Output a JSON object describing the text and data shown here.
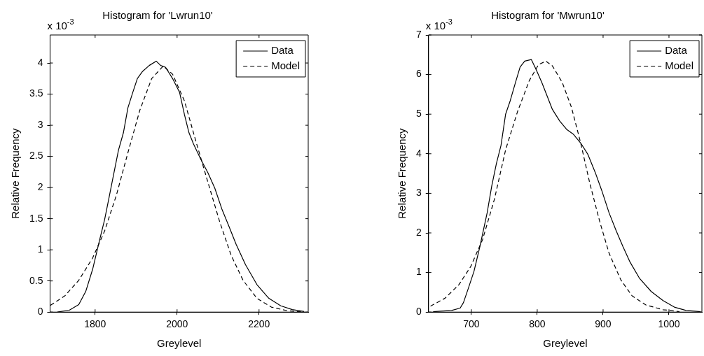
{
  "chart_data": [
    {
      "type": "line",
      "title": "Histogram for 'Lwrun10'",
      "xlabel": "Greylevel",
      "ylabel": "Relative Frequency",
      "annotations": [
        "x 10$^{-3}$"
      ],
      "xlim": [
        1690,
        2320
      ],
      "xticks": [
        1800,
        2000,
        2200
      ],
      "ylim": [
        0,
        4.45
      ],
      "yticks": [
        0,
        0.5,
        1,
        1.5,
        2,
        2.5,
        3,
        3.5,
        4
      ],
      "grid": false,
      "legend": "top right",
      "marker": "none",
      "series": [
        {
          "name": "Data",
          "color": "#000000",
          "line_style": "solid",
          "x": [
            1708,
            1737,
            1760,
            1777,
            1794,
            1811,
            1823,
            1834,
            1846,
            1857,
            1869,
            1880,
            1892,
            1903,
            1915,
            1932,
            1949,
            1960,
            1972,
            1989,
            2006,
            2018,
            2029,
            2040,
            2058,
            2075,
            2092,
            2109,
            2127,
            2144,
            2167,
            2195,
            2224,
            2253,
            2281,
            2310
          ],
          "values": [
            0,
            0.03,
            0.12,
            0.33,
            0.69,
            1.16,
            1.48,
            1.84,
            2.24,
            2.6,
            2.88,
            3.28,
            3.53,
            3.75,
            3.86,
            3.96,
            4.03,
            3.96,
            3.93,
            3.75,
            3.53,
            3.17,
            2.88,
            2.7,
            2.45,
            2.24,
            1.99,
            1.66,
            1.37,
            1.09,
            0.76,
            0.44,
            0.22,
            0.1,
            0.04,
            0.01
          ]
        },
        {
          "name": "Model",
          "color": "#000000",
          "line_style": "dashed",
          "x": [
            1691,
            1726,
            1760,
            1794,
            1823,
            1852,
            1880,
            1909,
            1938,
            1966,
            1989,
            2018,
            2046,
            2075,
            2104,
            2132,
            2161,
            2195,
            2230,
            2270,
            2310
          ],
          "values": [
            0.11,
            0.26,
            0.51,
            0.87,
            1.3,
            1.88,
            2.56,
            3.24,
            3.75,
            3.95,
            3.82,
            3.39,
            2.74,
            2.09,
            1.45,
            0.91,
            0.51,
            0.22,
            0.08,
            0.02,
            0
          ]
        }
      ]
    },
    {
      "type": "line",
      "title": "Histogram for 'Mwrun10'",
      "xlabel": "Greylevel",
      "ylabel": "Relative Frequency",
      "annotations": [
        "x 10$^{-3}$"
      ],
      "xlim": [
        635,
        1050
      ],
      "xticks": [
        700,
        800,
        900,
        1000
      ],
      "ylim": [
        0,
        7
      ],
      "yticks": [
        0,
        1,
        2,
        3,
        4,
        5,
        6,
        7
      ],
      "grid": false,
      "legend": "top right",
      "marker": "none",
      "series": [
        {
          "name": "Data",
          "color": "#000000",
          "line_style": "solid",
          "x": [
            642,
            670,
            683,
            688,
            695,
            704,
            713,
            724,
            731,
            738,
            745,
            752,
            759,
            767,
            774,
            781,
            791,
            798,
            807,
            815,
            823,
            834,
            845,
            855,
            866,
            877,
            888,
            898,
            909,
            920,
            930,
            941,
            955,
            973,
            991,
            1009,
            1026,
            1048
          ],
          "values": [
            0.01,
            0.04,
            0.1,
            0.24,
            0.58,
            1.03,
            1.66,
            2.51,
            3.19,
            3.75,
            4.21,
            5.0,
            5.34,
            5.8,
            6.19,
            6.34,
            6.38,
            6.14,
            5.8,
            5.46,
            5.12,
            4.83,
            4.61,
            4.49,
            4.27,
            3.98,
            3.53,
            3.07,
            2.51,
            2.05,
            1.66,
            1.26,
            0.86,
            0.52,
            0.29,
            0.12,
            0.04,
            0.01
          ]
        },
        {
          "name": "Model",
          "color": "#000000",
          "line_style": "dashed",
          "x": [
            638,
            660,
            681,
            699,
            717,
            735,
            752,
            770,
            788,
            802,
            813,
            823,
            838,
            852,
            866,
            880,
            895,
            909,
            927,
            944,
            965,
            991,
            1016
          ],
          "values": [
            0.15,
            0.35,
            0.69,
            1.15,
            1.83,
            2.85,
            4.1,
            5.06,
            5.85,
            6.25,
            6.34,
            6.22,
            5.8,
            5.17,
            4.27,
            3.24,
            2.28,
            1.49,
            0.81,
            0.41,
            0.18,
            0.06,
            0.01
          ]
        }
      ]
    }
  ]
}
